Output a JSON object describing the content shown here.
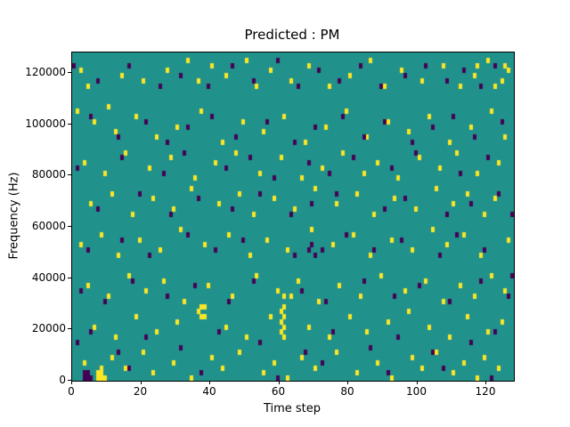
{
  "figure": {
    "title": "Predicted : PM",
    "xlabel": "Time step",
    "ylabel": "Frequency (Hz)"
  },
  "chart_data": {
    "type": "heatmap",
    "title": "Predicted : PM",
    "xlabel": "Time step",
    "ylabel": "Frequency (Hz)",
    "xlim": [
      0,
      128
    ],
    "ylim": [
      0,
      128000
    ],
    "xticks": [
      0,
      20,
      40,
      60,
      80,
      100,
      120
    ],
    "yticks": [
      0,
      20000,
      40000,
      60000,
      80000,
      100000,
      120000
    ],
    "grid": false,
    "legend": null,
    "time_steps": 128,
    "freq_bins": 64,
    "freq_bin_hz": 2000,
    "colors": {
      "background": "#21918c",
      "yellow": "#fde725",
      "purple": "#440154",
      "axis": "#000000"
    },
    "cells": {
      "note": "sparse cells over teal background; [time_step, freq_bin] with freq = bin*2000 Hz",
      "yellow": [
        [
          2,
          60
        ],
        [
          4,
          57
        ],
        [
          10,
          53
        ],
        [
          14,
          59
        ],
        [
          20,
          58
        ],
        [
          27,
          60
        ],
        [
          33,
          62
        ],
        [
          36,
          58
        ],
        [
          40,
          61
        ],
        [
          44,
          59
        ],
        [
          50,
          62
        ],
        [
          53,
          57
        ],
        [
          57,
          60
        ],
        [
          63,
          58
        ],
        [
          68,
          61
        ],
        [
          74,
          57
        ],
        [
          80,
          59
        ],
        [
          86,
          62
        ],
        [
          90,
          57
        ],
        [
          95,
          60
        ],
        [
          101,
          58
        ],
        [
          107,
          61
        ],
        [
          112,
          57
        ],
        [
          116,
          59
        ],
        [
          120,
          62
        ],
        [
          124,
          58
        ],
        [
          126,
          60
        ],
        [
          117,
          61
        ],
        [
          122,
          57
        ],
        [
          125,
          61
        ],
        [
          1,
          52
        ],
        [
          6,
          50
        ],
        [
          12,
          48
        ],
        [
          18,
          51
        ],
        [
          24,
          47
        ],
        [
          30,
          49
        ],
        [
          37,
          52
        ],
        [
          43,
          46
        ],
        [
          49,
          50
        ],
        [
          55,
          48
        ],
        [
          61,
          51
        ],
        [
          67,
          46
        ],
        [
          73,
          49
        ],
        [
          79,
          52
        ],
        [
          85,
          47
        ],
        [
          91,
          50
        ],
        [
          97,
          48
        ],
        [
          103,
          51
        ],
        [
          109,
          46
        ],
        [
          115,
          49
        ],
        [
          121,
          52
        ],
        [
          125,
          47
        ],
        [
          3,
          42
        ],
        [
          9,
          40
        ],
        [
          15,
          44
        ],
        [
          22,
          41
        ],
        [
          28,
          43
        ],
        [
          35,
          39
        ],
        [
          41,
          42
        ],
        [
          47,
          44
        ],
        [
          54,
          40
        ],
        [
          60,
          43
        ],
        [
          66,
          39
        ],
        [
          72,
          41
        ],
        [
          78,
          44
        ],
        [
          84,
          40
        ],
        [
          88,
          42
        ],
        [
          94,
          39
        ],
        [
          100,
          43
        ],
        [
          106,
          41
        ],
        [
          111,
          44
        ],
        [
          117,
          40
        ],
        [
          123,
          42
        ],
        [
          5,
          34
        ],
        [
          11,
          36
        ],
        [
          17,
          32
        ],
        [
          23,
          35
        ],
        [
          29,
          33
        ],
        [
          34,
          37
        ],
        [
          42,
          34
        ],
        [
          48,
          36
        ],
        [
          52,
          32
        ],
        [
          58,
          35
        ],
        [
          64,
          33
        ],
        [
          70,
          37
        ],
        [
          76,
          34
        ],
        [
          82,
          36
        ],
        [
          87,
          32
        ],
        [
          93,
          35
        ],
        [
          99,
          33
        ],
        [
          105,
          37
        ],
        [
          110,
          34
        ],
        [
          114,
          36
        ],
        [
          119,
          32
        ],
        [
          122,
          35
        ],
        [
          2,
          26
        ],
        [
          8,
          28
        ],
        [
          13,
          24
        ],
        [
          19,
          27
        ],
        [
          25,
          25
        ],
        [
          31,
          29
        ],
        [
          38,
          26
        ],
        [
          45,
          28
        ],
        [
          51,
          24
        ],
        [
          56,
          27
        ],
        [
          62,
          25
        ],
        [
          69,
          29
        ],
        [
          75,
          26
        ],
        [
          81,
          28
        ],
        [
          86,
          24
        ],
        [
          92,
          27
        ],
        [
          98,
          25
        ],
        [
          104,
          29
        ],
        [
          108,
          26
        ],
        [
          113,
          28
        ],
        [
          118,
          24
        ],
        [
          126,
          27
        ],
        [
          4,
          18
        ],
        [
          10,
          16
        ],
        [
          16,
          20
        ],
        [
          21,
          17
        ],
        [
          26,
          19
        ],
        [
          32,
          15
        ],
        [
          39,
          18
        ],
        [
          46,
          16
        ],
        [
          53,
          20
        ],
        [
          59,
          17
        ],
        [
          65,
          19
        ],
        [
          71,
          15
        ],
        [
          77,
          18
        ],
        [
          83,
          16
        ],
        [
          89,
          20
        ],
        [
          96,
          17
        ],
        [
          102,
          19
        ],
        [
          107,
          15
        ],
        [
          112,
          18
        ],
        [
          116,
          16
        ],
        [
          121,
          20
        ],
        [
          125,
          17
        ],
        [
          6,
          10
        ],
        [
          12,
          8
        ],
        [
          18,
          12
        ],
        [
          24,
          9
        ],
        [
          30,
          11
        ],
        [
          36,
          13
        ],
        [
          37,
          12
        ],
        [
          37,
          14
        ],
        [
          38,
          14
        ],
        [
          38,
          12
        ],
        [
          44,
          10
        ],
        [
          50,
          8
        ],
        [
          57,
          12
        ],
        [
          60,
          9
        ],
        [
          60,
          11
        ],
        [
          60,
          13
        ],
        [
          61,
          8
        ],
        [
          61,
          10
        ],
        [
          61,
          12
        ],
        [
          61,
          14
        ],
        [
          61,
          16
        ],
        [
          63,
          16
        ],
        [
          68,
          10
        ],
        [
          74,
          8
        ],
        [
          80,
          12
        ],
        [
          85,
          9
        ],
        [
          91,
          11
        ],
        [
          97,
          13
        ],
        [
          103,
          10
        ],
        [
          109,
          8
        ],
        [
          114,
          12
        ],
        [
          120,
          9
        ],
        [
          124,
          11
        ],
        [
          3,
          3
        ],
        [
          7,
          0
        ],
        [
          7,
          1
        ],
        [
          8,
          0
        ],
        [
          8,
          1
        ],
        [
          8,
          2
        ],
        [
          9,
          0
        ],
        [
          11,
          4
        ],
        [
          15,
          2
        ],
        [
          20,
          5
        ],
        [
          23,
          1
        ],
        [
          29,
          3
        ],
        [
          34,
          0
        ],
        [
          40,
          4
        ],
        [
          43,
          2
        ],
        [
          48,
          5
        ],
        [
          55,
          1
        ],
        [
          58,
          3
        ],
        [
          62,
          0
        ],
        [
          66,
          4
        ],
        [
          70,
          2
        ],
        [
          76,
          5
        ],
        [
          82,
          1
        ],
        [
          88,
          3
        ],
        [
          92,
          0
        ],
        [
          98,
          4
        ],
        [
          101,
          2
        ],
        [
          105,
          5
        ],
        [
          110,
          1
        ],
        [
          113,
          3
        ],
        [
          117,
          0
        ],
        [
          119,
          4
        ],
        [
          123,
          2
        ]
      ],
      "purple": [
        [
          0,
          61
        ],
        [
          7,
          58
        ],
        [
          16,
          61
        ],
        [
          25,
          57
        ],
        [
          31,
          59
        ],
        [
          39,
          57
        ],
        [
          46,
          61
        ],
        [
          52,
          58
        ],
        [
          59,
          62
        ],
        [
          65,
          57
        ],
        [
          71,
          60
        ],
        [
          77,
          58
        ],
        [
          83,
          61
        ],
        [
          89,
          57
        ],
        [
          96,
          59
        ],
        [
          102,
          61
        ],
        [
          108,
          58
        ],
        [
          113,
          60
        ],
        [
          118,
          57
        ],
        [
          122,
          61
        ],
        [
          5,
          51
        ],
        [
          13,
          47
        ],
        [
          21,
          50
        ],
        [
          27,
          46
        ],
        [
          33,
          49
        ],
        [
          40,
          51
        ],
        [
          47,
          47
        ],
        [
          56,
          50
        ],
        [
          64,
          46
        ],
        [
          70,
          49
        ],
        [
          78,
          51
        ],
        [
          84,
          47
        ],
        [
          90,
          50
        ],
        [
          98,
          46
        ],
        [
          104,
          49
        ],
        [
          110,
          51
        ],
        [
          116,
          47
        ],
        [
          124,
          50
        ],
        [
          1,
          41
        ],
        [
          14,
          43
        ],
        [
          26,
          40
        ],
        [
          32,
          44
        ],
        [
          44,
          41
        ],
        [
          51,
          43
        ],
        [
          58,
          39
        ],
        [
          68,
          42
        ],
        [
          74,
          40
        ],
        [
          81,
          43
        ],
        [
          92,
          41
        ],
        [
          99,
          44
        ],
        [
          112,
          40
        ],
        [
          120,
          43
        ],
        [
          127,
          32
        ],
        [
          7,
          33
        ],
        [
          19,
          36
        ],
        [
          28,
          32
        ],
        [
          36,
          35
        ],
        [
          46,
          33
        ],
        [
          54,
          36
        ],
        [
          63,
          32
        ],
        [
          69,
          34
        ],
        [
          76,
          36
        ],
        [
          90,
          33
        ],
        [
          96,
          35
        ],
        [
          108,
          32
        ],
        [
          115,
          34
        ],
        [
          123,
          36
        ],
        [
          4,
          25
        ],
        [
          14,
          27
        ],
        [
          22,
          24
        ],
        [
          33,
          28
        ],
        [
          41,
          25
        ],
        [
          49,
          27
        ],
        [
          64,
          24
        ],
        [
          68,
          25
        ],
        [
          69,
          26
        ],
        [
          70,
          24
        ],
        [
          72,
          25
        ],
        [
          79,
          28
        ],
        [
          87,
          25
        ],
        [
          95,
          27
        ],
        [
          106,
          24
        ],
        [
          111,
          28
        ],
        [
          119,
          25
        ],
        [
          127,
          20
        ],
        [
          2,
          17
        ],
        [
          9,
          15
        ],
        [
          17,
          19
        ],
        [
          27,
          16
        ],
        [
          35,
          18
        ],
        [
          45,
          15
        ],
        [
          52,
          19
        ],
        [
          66,
          17
        ],
        [
          73,
          15
        ],
        [
          84,
          19
        ],
        [
          93,
          16
        ],
        [
          100,
          18
        ],
        [
          109,
          15
        ],
        [
          118,
          19
        ],
        [
          126,
          16
        ],
        [
          1,
          7
        ],
        [
          5,
          9
        ],
        [
          13,
          5
        ],
        [
          21,
          8
        ],
        [
          31,
          6
        ],
        [
          42,
          9
        ],
        [
          54,
          7
        ],
        [
          67,
          5
        ],
        [
          75,
          9
        ],
        [
          86,
          6
        ],
        [
          94,
          8
        ],
        [
          104,
          5
        ],
        [
          115,
          7
        ],
        [
          122,
          9
        ],
        [
          3,
          0
        ],
        [
          3,
          1
        ],
        [
          4,
          0
        ],
        [
          4,
          1
        ],
        [
          5,
          0
        ],
        [
          16,
          2
        ],
        [
          37,
          1
        ],
        [
          59,
          0
        ],
        [
          72,
          3
        ],
        [
          91,
          1
        ],
        [
          107,
          2
        ],
        [
          121,
          0
        ]
      ]
    }
  }
}
